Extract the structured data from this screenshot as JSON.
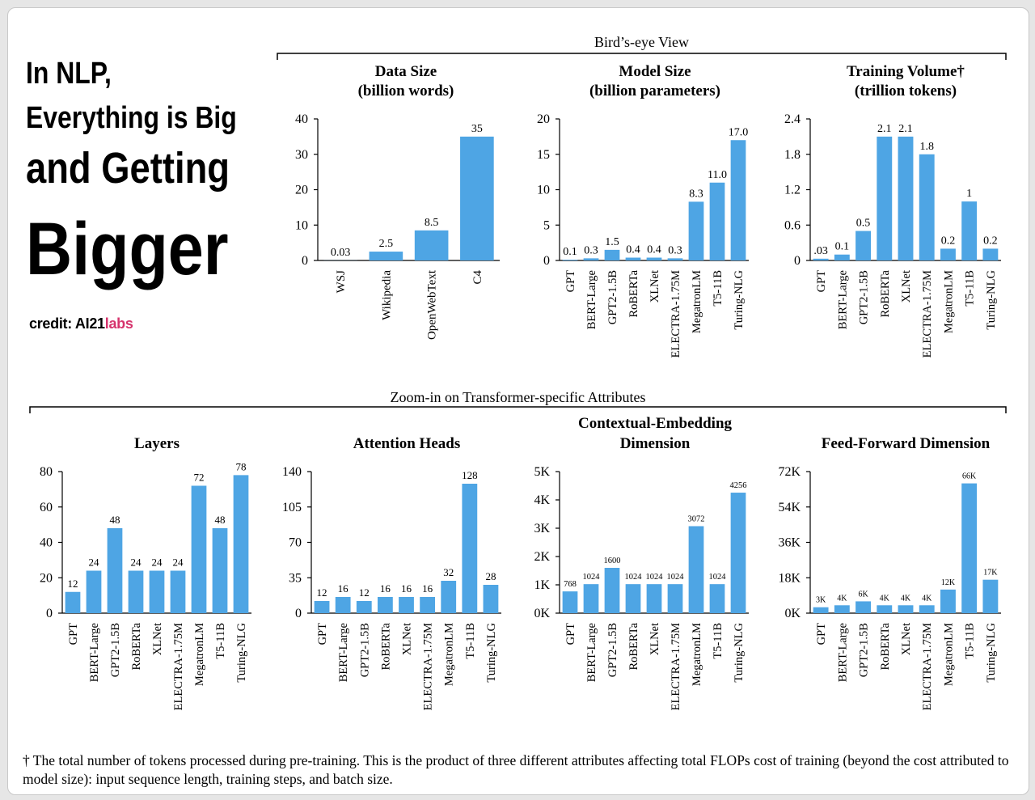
{
  "headline": {
    "line1": "In NLP,",
    "line2": "Everything is Big",
    "line3": "and Getting",
    "line4": "Bigger"
  },
  "credit": {
    "prefix": "credit:",
    "brand_a": "AI21",
    "brand_b": "labs",
    "brand_b_color": "#d6336c"
  },
  "sections": {
    "top": "Bird’s-eye View",
    "bottom": "Zoom-in on Transformer-specific Attributes"
  },
  "footnote": "† The total number of tokens processed during pre-training. This is the product of three different attributes affecting total FLOPs cost of training (beyond the cost attributed to model size): input sequence length, training steps, and batch size.",
  "colors": {
    "bar": "#4ea5e4",
    "axis": "#000000"
  },
  "chart_data": [
    {
      "type": "bar",
      "title": [
        "Data Size",
        "(billion words)"
      ],
      "categories": [
        "WSJ",
        "Wikipedia",
        "OpenWebText",
        "C4"
      ],
      "values": [
        0.03,
        2.5,
        8.5,
        35
      ],
      "value_labels": [
        "0.03",
        "2.5",
        "8.5",
        "35"
      ],
      "ylim": [
        0,
        40
      ],
      "yticks": [
        0,
        10,
        20,
        30,
        40
      ],
      "ytick_labels": [
        "0",
        "10",
        "20",
        "30",
        "40"
      ]
    },
    {
      "type": "bar",
      "title": [
        "Model Size",
        "(billion parameters)"
      ],
      "categories": [
        "GPT",
        "BERT-Large",
        "GPT2-1.5B",
        "RoBERTa",
        "XLNet",
        "ELECTRA-1.75M",
        "MegatronLM",
        "T5-11B",
        "Turing-NLG"
      ],
      "values": [
        0.1,
        0.3,
        1.5,
        0.4,
        0.4,
        0.3,
        8.3,
        11.0,
        17.0
      ],
      "value_labels": [
        "0.1",
        "0.3",
        "1.5",
        "0.4",
        "0.4",
        "0.3",
        "8.3",
        "11.0",
        "17.0"
      ],
      "ylim": [
        0,
        20
      ],
      "yticks": [
        0,
        5,
        10,
        15,
        20
      ],
      "ytick_labels": [
        "0",
        "5",
        "10",
        "15",
        "20"
      ]
    },
    {
      "type": "bar",
      "title": [
        "Training Volume†",
        "(trillion tokens)"
      ],
      "categories": [
        "GPT",
        "BERT-Large",
        "GPT2-1.5B",
        "RoBERTa",
        "XLNet",
        "ELECTRA-1.75M",
        "MegatronLM",
        "T5-11B",
        "Turing-NLG"
      ],
      "values": [
        0.03,
        0.1,
        0.5,
        2.1,
        2.1,
        1.8,
        0.2,
        1,
        0.2
      ],
      "value_labels": [
        ".03",
        "0.1",
        "0.5",
        "2.1",
        "2.1",
        "1.8",
        "0.2",
        "1",
        "0.2"
      ],
      "ylim": [
        0,
        2.4
      ],
      "yticks": [
        0,
        0.6,
        1.2,
        1.8,
        2.4
      ],
      "ytick_labels": [
        "0",
        "0.6",
        "1.2",
        "1.8",
        "2.4"
      ]
    },
    {
      "type": "bar",
      "title": [
        "Layers"
      ],
      "categories": [
        "GPT",
        "BERT-Large",
        "GPT2-1.5B",
        "RoBERTa",
        "XLNet",
        "ELECTRA-1.75M",
        "MegatronLM",
        "T5-11B",
        "Turing-NLG"
      ],
      "values": [
        12,
        24,
        48,
        24,
        24,
        24,
        72,
        48,
        78
      ],
      "value_labels": [
        "12",
        "24",
        "48",
        "24",
        "24",
        "24",
        "72",
        "48",
        "78"
      ],
      "ylim": [
        0,
        80
      ],
      "yticks": [
        0,
        20,
        40,
        60,
        80
      ],
      "ytick_labels": [
        "0",
        "20",
        "40",
        "60",
        "80"
      ]
    },
    {
      "type": "bar",
      "title": [
        "Attention Heads"
      ],
      "categories": [
        "GPT",
        "BERT-Large",
        "GPT2-1.5B",
        "RoBERTa",
        "XLNet",
        "ELECTRA-1.75M",
        "MegatronLM",
        "T5-11B",
        "Turing-NLG"
      ],
      "values": [
        12,
        16,
        12,
        16,
        16,
        16,
        32,
        128,
        28
      ],
      "value_labels": [
        "12",
        "16",
        "12",
        "16",
        "16",
        "16",
        "32",
        "128",
        "28"
      ],
      "ylim": [
        0,
        140
      ],
      "yticks": [
        0,
        35,
        70,
        105,
        140
      ],
      "ytick_labels": [
        "0",
        "35",
        "70",
        "105",
        "140"
      ]
    },
    {
      "type": "bar",
      "title": [
        "Contextual-Embedding",
        "Dimension"
      ],
      "categories": [
        "GPT",
        "BERT-Large",
        "GPT2-1.5B",
        "RoBERTa",
        "XLNet",
        "ELECTRA-1.75M",
        "MegatronLM",
        "T5-11B",
        "Turing-NLG"
      ],
      "values": [
        768,
        1024,
        1600,
        1024,
        1024,
        1024,
        3072,
        1024,
        4256
      ],
      "value_labels": [
        "768",
        "1024",
        "1600",
        "1024",
        "1024",
        "1024",
        "3072",
        "1024",
        "4256"
      ],
      "ylim": [
        0,
        5000
      ],
      "yticks": [
        0,
        1000,
        2000,
        3000,
        4000,
        5000
      ],
      "ytick_labels": [
        "0K",
        "1K",
        "2K",
        "3K",
        "4K",
        "5K"
      ]
    },
    {
      "type": "bar",
      "title": [
        "Feed-Forward Dimension"
      ],
      "categories": [
        "GPT",
        "BERT-Large",
        "GPT2-1.5B",
        "RoBERTa",
        "XLNet",
        "ELECTRA-1.75M",
        "MegatronLM",
        "T5-11B",
        "Turing-NLG"
      ],
      "values": [
        3000,
        4000,
        6000,
        4000,
        4000,
        4000,
        12000,
        66000,
        17000
      ],
      "value_labels": [
        "3K",
        "4K",
        "6K",
        "4K",
        "4K",
        "4K",
        "12K",
        "66K",
        "17K"
      ],
      "ylim": [
        0,
        72000
      ],
      "yticks": [
        0,
        18000,
        36000,
        54000,
        72000
      ],
      "ytick_labels": [
        "0K",
        "18K",
        "36K",
        "54K",
        "72K"
      ]
    }
  ]
}
